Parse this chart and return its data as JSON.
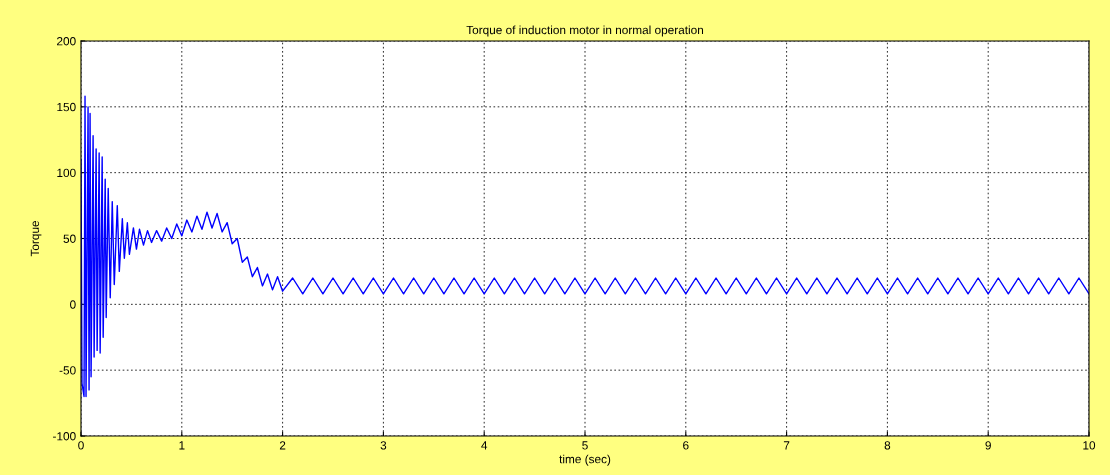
{
  "chart_data": {
    "type": "line",
    "title": "Torque of induction motor in normal operation",
    "xlabel": "time (sec)",
    "ylabel": "Torque",
    "xlim": [
      0,
      10
    ],
    "ylim": [
      -100,
      200
    ],
    "xticks": [
      0,
      1,
      2,
      3,
      4,
      5,
      6,
      7,
      8,
      9,
      10
    ],
    "yticks": [
      -100,
      -50,
      0,
      50,
      100,
      150,
      200
    ],
    "grid": true,
    "line_style": "solid",
    "series": [
      {
        "color": "#0000ff",
        "x": [
          0,
          0.01,
          0.03,
          0.04,
          0.05,
          0.07,
          0.08,
          0.09,
          0.1,
          0.12,
          0.13,
          0.15,
          0.16,
          0.18,
          0.19,
          0.21,
          0.22,
          0.24,
          0.25,
          0.27,
          0.29,
          0.31,
          0.33,
          0.36,
          0.38,
          0.41,
          0.43,
          0.46,
          0.48,
          0.52,
          0.55,
          0.58,
          0.62,
          0.66,
          0.7,
          0.75,
          0.8,
          0.85,
          0.9,
          0.95,
          1.0,
          1.05,
          1.1,
          1.15,
          1.2,
          1.25,
          1.3,
          1.35,
          1.4,
          1.45,
          1.5,
          1.55,
          1.6,
          1.65,
          1.7,
          1.75,
          1.8,
          1.85,
          1.9,
          1.95,
          2.0,
          2.1,
          2.2,
          2.3,
          2.4,
          2.5,
          2.6,
          2.7,
          2.8,
          2.9,
          3.0,
          3.1,
          3.2,
          3.3,
          3.4,
          3.5,
          3.6,
          3.7,
          3.8,
          3.9,
          4.0,
          4.1,
          4.2,
          4.3,
          4.4,
          4.5,
          4.6,
          4.7,
          4.8,
          4.9,
          5.0,
          5.1,
          5.2,
          5.3,
          5.4,
          5.5,
          5.6,
          5.7,
          5.8,
          5.9,
          6.0,
          6.1,
          6.2,
          6.3,
          6.4,
          6.5,
          6.6,
          6.7,
          6.8,
          6.9,
          7.0,
          7.1,
          7.2,
          7.3,
          7.4,
          7.5,
          7.6,
          7.7,
          7.8,
          7.9,
          8.0,
          8.1,
          8.2,
          8.3,
          8.4,
          8.5,
          8.6,
          8.7,
          8.8,
          8.9,
          9.0,
          9.1,
          9.2,
          9.3,
          9.4,
          9.5,
          9.6,
          9.7,
          9.8,
          9.9,
          10.0
        ],
        "values": [
          110,
          -60,
          -70,
          158,
          -70,
          150,
          -65,
          145,
          -55,
          128,
          -40,
          118,
          -35,
          115,
          -37,
          112,
          -25,
          95,
          -10,
          88,
          5,
          78,
          15,
          75,
          25,
          65,
          35,
          62,
          38,
          58,
          42,
          57,
          45,
          56,
          47,
          56,
          48,
          58,
          50,
          61,
          52,
          64,
          55,
          67,
          57,
          70,
          58,
          69,
          55,
          62,
          46,
          50,
          32,
          36,
          21,
          28,
          14,
          23,
          11,
          21,
          10,
          20,
          8,
          20,
          8,
          20,
          8,
          20,
          8,
          20,
          8,
          20,
          8,
          20,
          8,
          20,
          8,
          20,
          8,
          20,
          8,
          20,
          8,
          20,
          8,
          20,
          8,
          20,
          8,
          20,
          8,
          20,
          8,
          20,
          8,
          20,
          8,
          20,
          8,
          20,
          8,
          20,
          8,
          20,
          8,
          20,
          8,
          20,
          8,
          20,
          8,
          20,
          8,
          20,
          8,
          20,
          8,
          20,
          8,
          20,
          8,
          20,
          8,
          20,
          8,
          20,
          8,
          20,
          8,
          20,
          8,
          20,
          8,
          20,
          8,
          20,
          8,
          20,
          8,
          20,
          8
        ]
      }
    ]
  }
}
